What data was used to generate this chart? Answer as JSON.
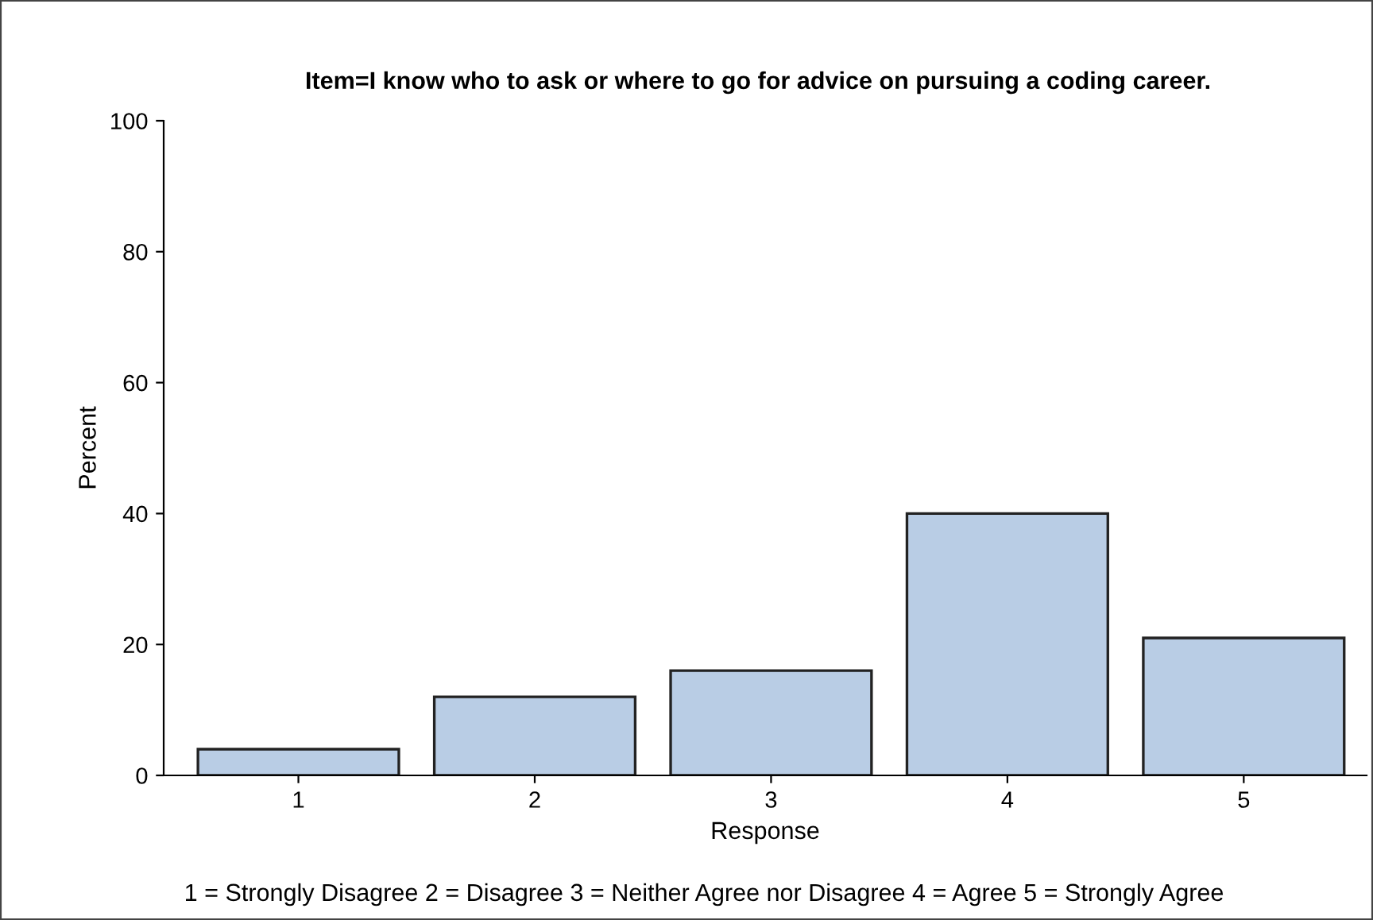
{
  "chart_data": {
    "type": "bar",
    "title": "Item=I know who to ask or where to go for advice on pursuing a coding career.",
    "categories": [
      "1",
      "2",
      "3",
      "4",
      "5"
    ],
    "values": [
      4,
      12,
      16,
      40,
      21
    ],
    "color": "#b9cde5",
    "xlabel": "Response",
    "ylabel": "Percent",
    "ylim": [
      0,
      100
    ],
    "yticks": [
      0,
      20,
      40,
      60,
      80,
      100
    ],
    "grid": false,
    "legend": false,
    "annotations": [
      "1 = Strongly Disagree 2 = Disagree 3 = Neither Agree nor Disagree 4 = Agree 5 = Strongly Agree"
    ]
  }
}
